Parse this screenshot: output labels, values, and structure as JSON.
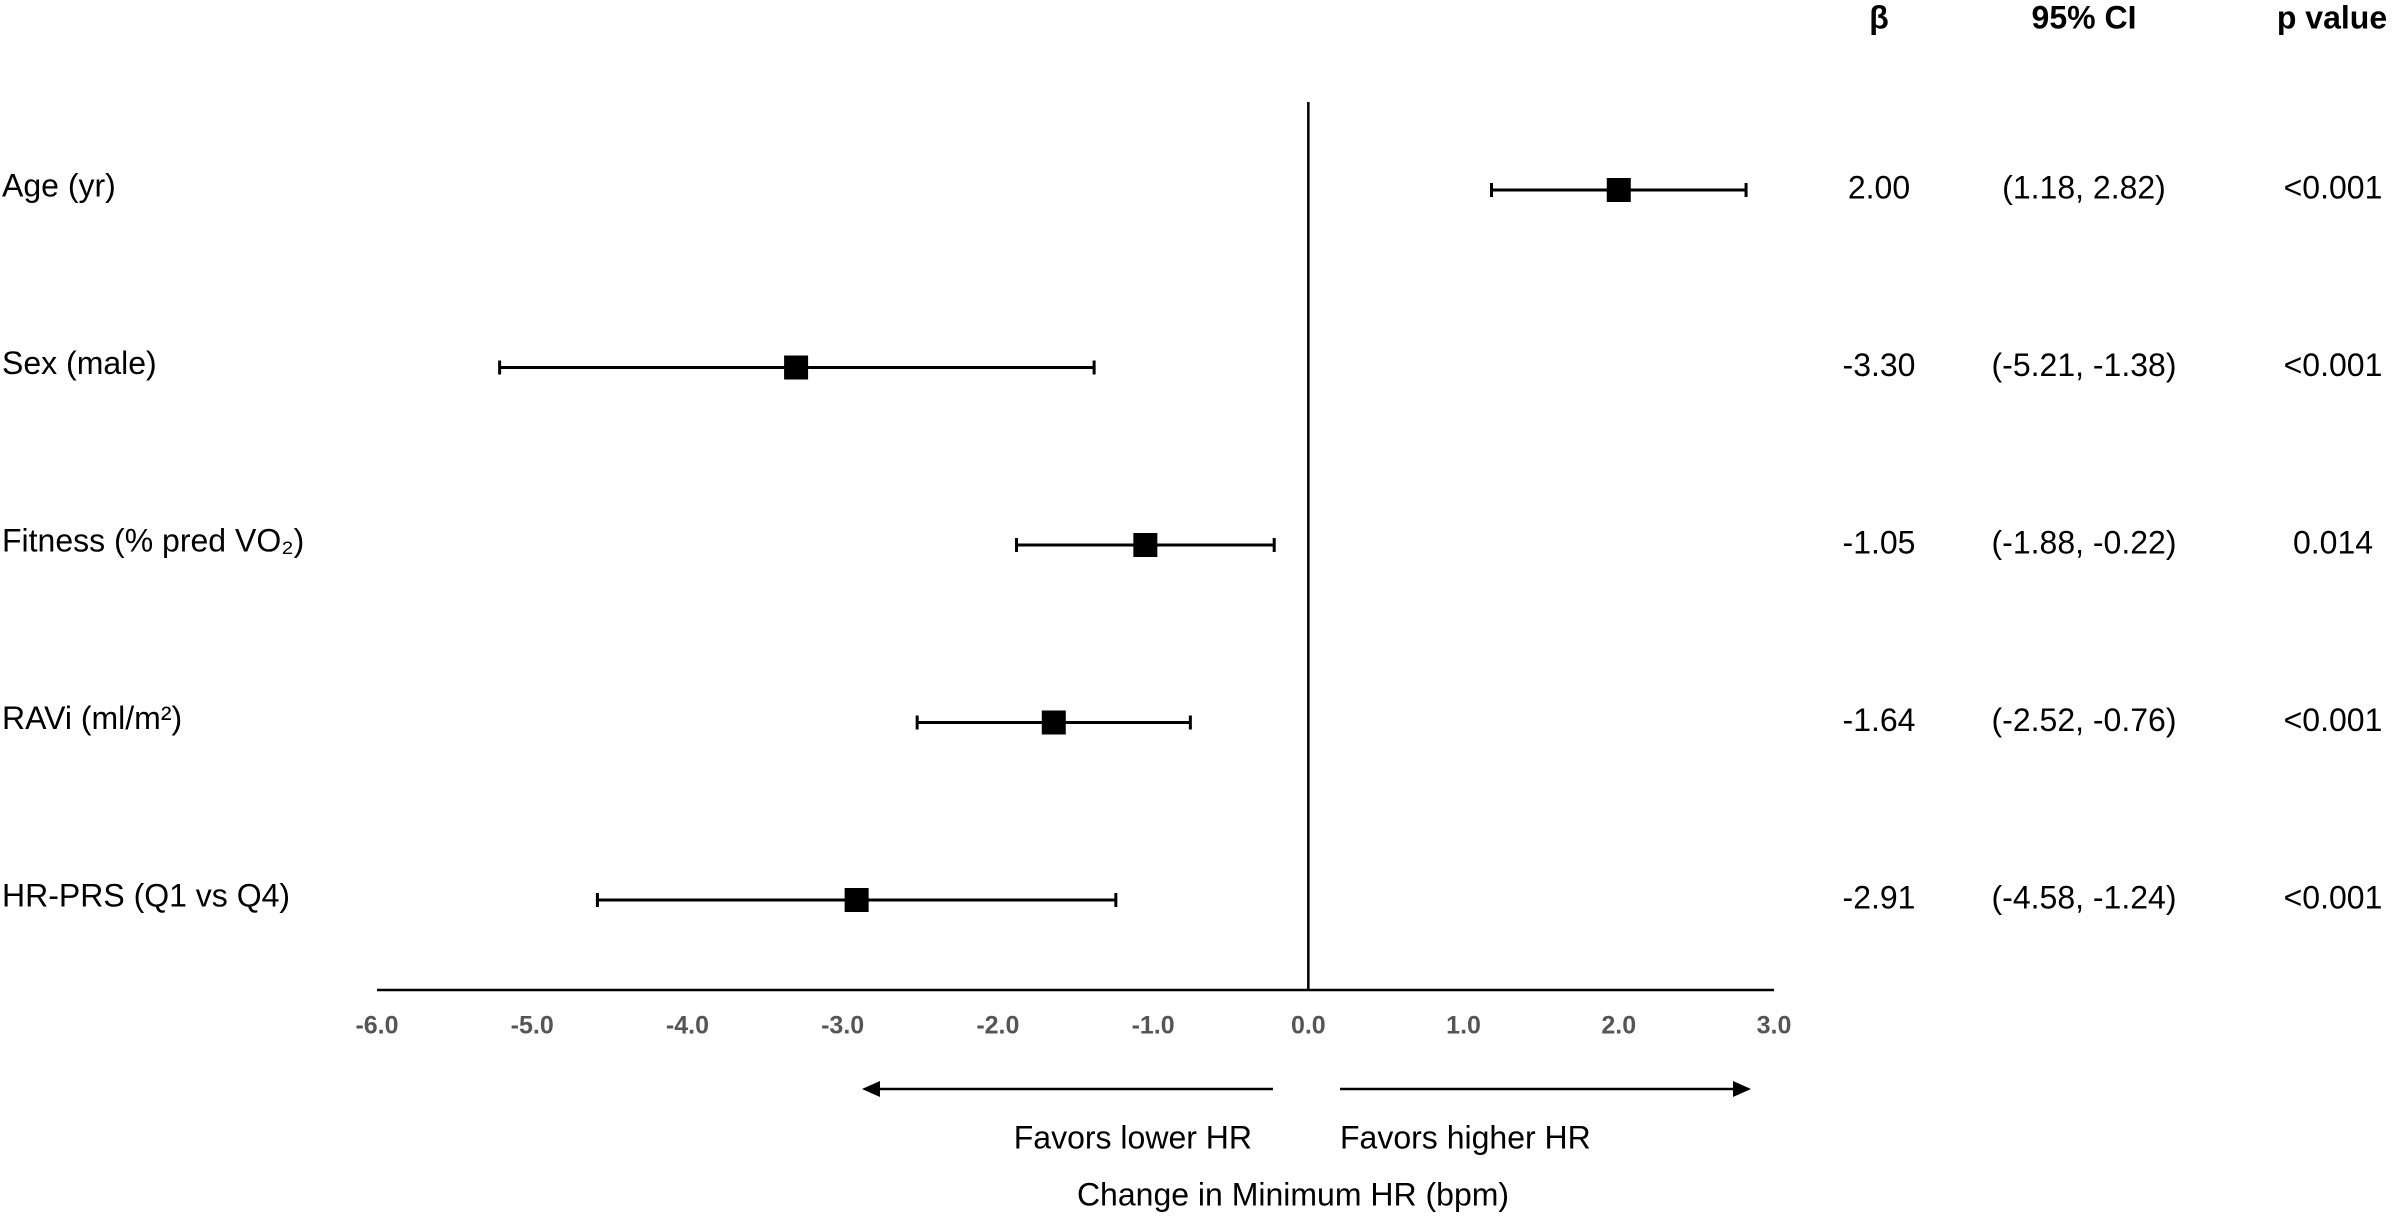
{
  "chart_data": {
    "type": "forest",
    "categories": [
      "Age (yr)",
      "Sex (male)",
      "Fitness (% pred VO₂)",
      "RAVi (ml/m²)",
      "HR-PRS (Q1 vs Q4)"
    ],
    "values": [
      2.0,
      -3.3,
      -1.05,
      -1.64,
      -2.91
    ],
    "value_labels": [
      "2.00",
      "-3.30",
      "-1.05",
      "-1.64",
      "-2.91"
    ],
    "lower": [
      1.18,
      -5.21,
      -1.88,
      -2.52,
      -4.58
    ],
    "upper": [
      2.82,
      -1.38,
      -0.22,
      -0.76,
      -1.24
    ],
    "ci_labels": [
      "(1.18, 2.82)",
      "(-5.21, -1.38)",
      "(-1.88, -0.22)",
      "(-2.52, -0.76)",
      "(-4.58, -1.24)"
    ],
    "p_values": [
      "<0.001",
      "<0.001",
      "0.014",
      "<0.001",
      "<0.001"
    ],
    "column_headers": [
      "β",
      "95% CI",
      "p value"
    ],
    "xlim": [
      -6,
      3
    ],
    "xticks": [
      {
        "value": -6,
        "label": "-6.0"
      },
      {
        "value": -5,
        "label": "-5.0"
      },
      {
        "value": -4,
        "label": "-4.0"
      },
      {
        "value": -3,
        "label": "-3.0"
      },
      {
        "value": -2,
        "label": "-2.0"
      },
      {
        "value": -1,
        "label": "-1.0"
      },
      {
        "value": 0,
        "label": "0.0"
      },
      {
        "value": 1,
        "label": "1.0"
      },
      {
        "value": 2,
        "label": "2.0"
      },
      {
        "value": 3,
        "label": "3.0"
      }
    ],
    "xlabel": "Change in Minimum HR (bpm)",
    "annotations": [
      "Favors lower HR",
      "Favors higher HR"
    ],
    "color": "#000000"
  }
}
